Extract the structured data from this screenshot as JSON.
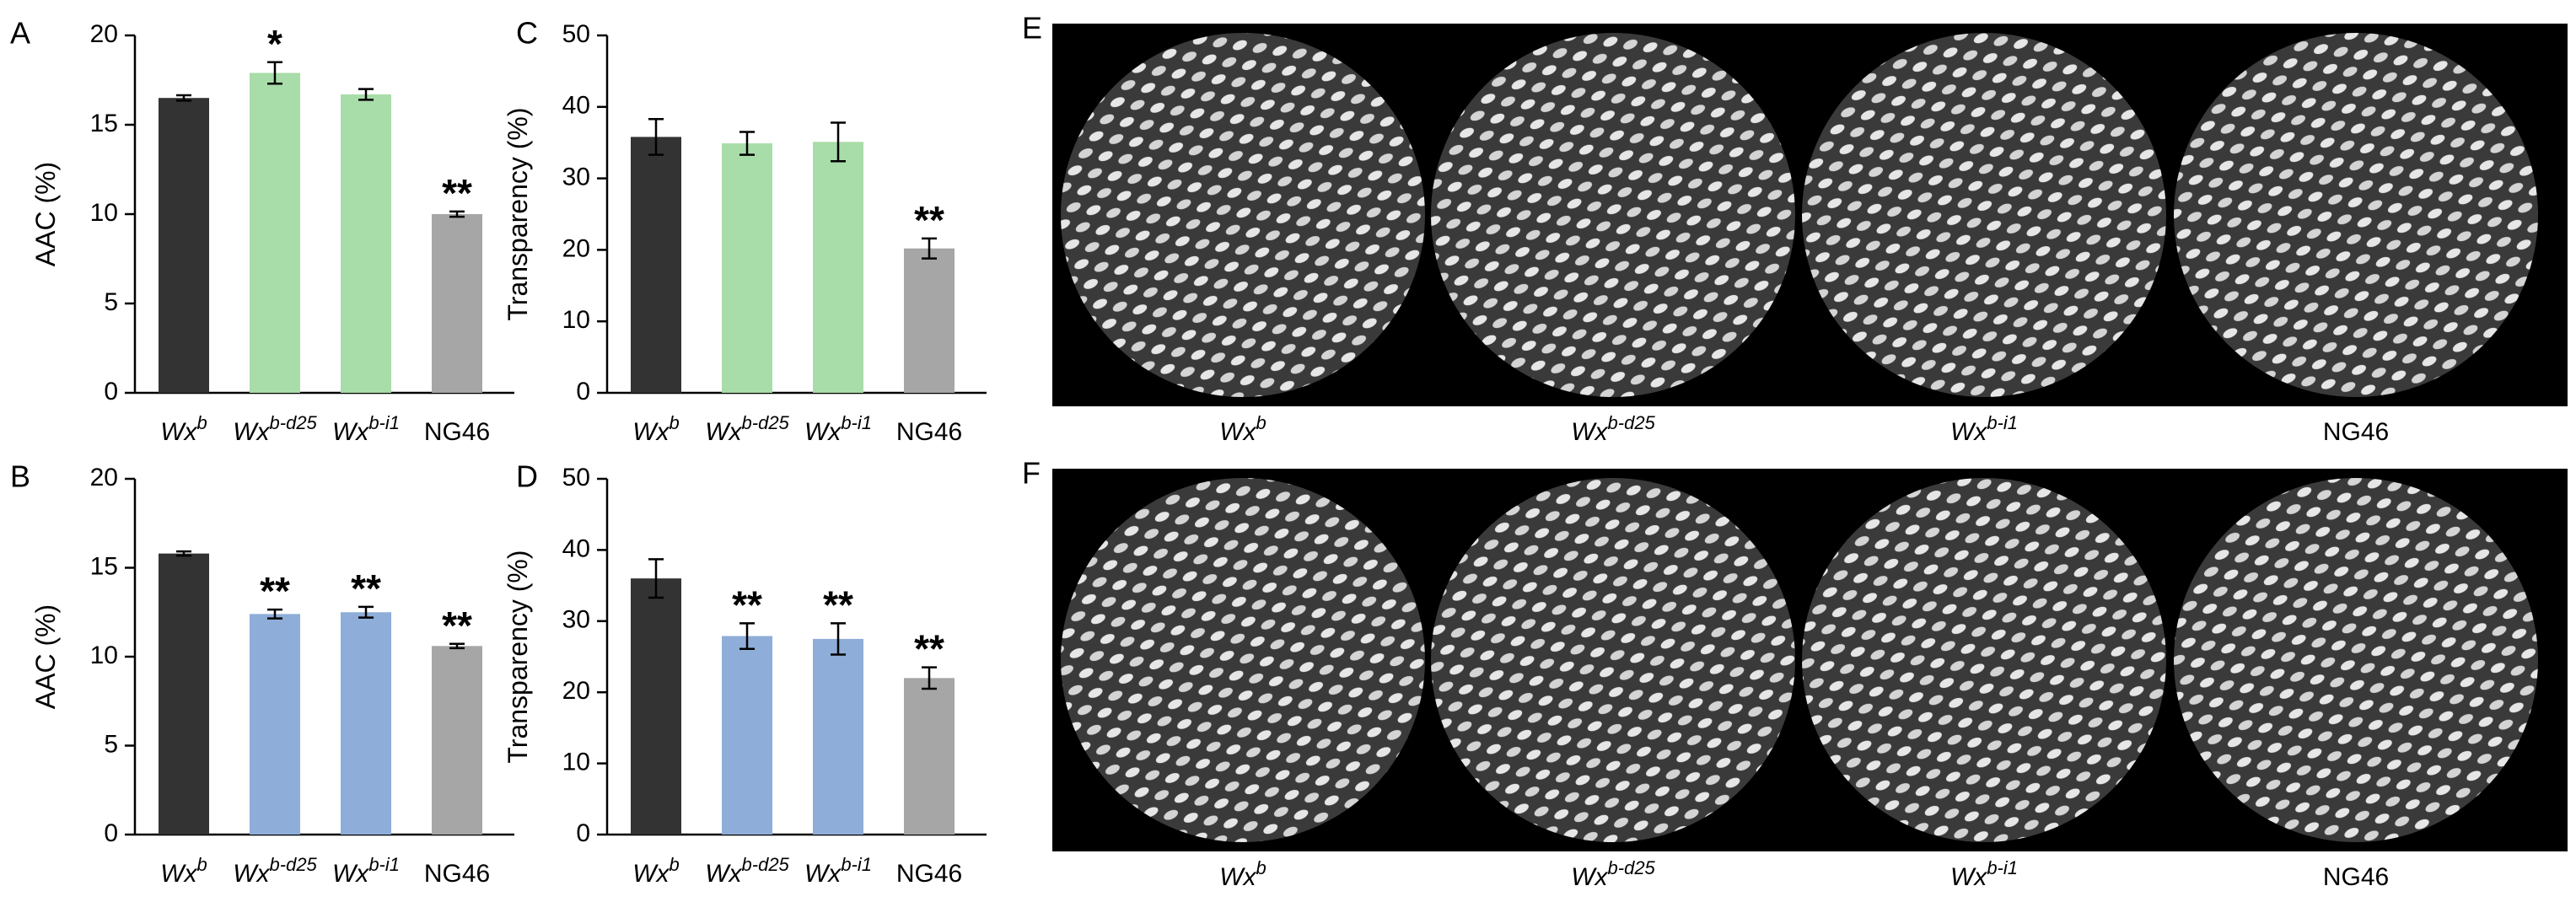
{
  "panel_letters": [
    "A",
    "B",
    "C",
    "D",
    "E",
    "F"
  ],
  "genotypes": [
    {
      "base": "Wx",
      "sup": "b"
    },
    {
      "base": "Wx",
      "sup": "b-d25"
    },
    {
      "base": "Wx",
      "sup": "b-i1"
    },
    {
      "base": "NG46",
      "sup": ""
    }
  ],
  "colors": {
    "wxb": "#333333",
    "knockout_green": "#a8dca8",
    "knockout_blue": "#8eadd8",
    "ng46": "#a6a6a6",
    "photo_background": "#000000",
    "grain": "#d9d9d9"
  },
  "chart_data": [
    {
      "panel": "A",
      "type": "bar",
      "ylabel": "AAC (%)",
      "ylim": [
        0,
        20
      ],
      "yticks": [
        "0",
        "5",
        "10",
        "15",
        "20"
      ],
      "categories": [
        "Wxb",
        "Wxb-d25",
        "Wxb-i1",
        "NG46"
      ],
      "values": [
        16.5,
        17.9,
        16.7,
        10.0
      ],
      "errors": [
        0.15,
        0.6,
        0.3,
        0.15
      ],
      "significance": [
        "",
        "*",
        "",
        "**"
      ],
      "bar_colors": [
        "#333333",
        "#a8dca8",
        "#a8dca8",
        "#a6a6a6"
      ]
    },
    {
      "panel": "B",
      "type": "bar",
      "ylabel": "AAC (%)",
      "ylim": [
        0,
        20
      ],
      "yticks": [
        "0",
        "5",
        "10",
        "15",
        "20"
      ],
      "categories": [
        "Wxb",
        "Wxb-d25",
        "Wxb-i1",
        "NG46"
      ],
      "values": [
        15.8,
        12.4,
        12.5,
        10.6
      ],
      "errors": [
        0.12,
        0.25,
        0.3,
        0.12
      ],
      "significance": [
        "",
        "**",
        "**",
        "**"
      ],
      "bar_colors": [
        "#333333",
        "#8eadd8",
        "#8eadd8",
        "#a6a6a6"
      ]
    },
    {
      "panel": "C",
      "type": "bar",
      "ylabel": "Transparency (%)",
      "ylim": [
        0,
        50
      ],
      "yticks": [
        "0",
        "10",
        "20",
        "30",
        "40",
        "50"
      ],
      "categories": [
        "Wxb",
        "Wxb-d25",
        "Wxb-i1",
        "NG46"
      ],
      "values": [
        35.8,
        34.9,
        35.1,
        20.2
      ],
      "errors": [
        2.5,
        1.6,
        2.7,
        1.4
      ],
      "significance": [
        "",
        "",
        "",
        "**"
      ],
      "bar_colors": [
        "#333333",
        "#a8dca8",
        "#a8dca8",
        "#a6a6a6"
      ]
    },
    {
      "panel": "D",
      "type": "bar",
      "ylabel": "Transparency (%)",
      "ylim": [
        0,
        50
      ],
      "yticks": [
        "0",
        "10",
        "20",
        "30",
        "40",
        "50"
      ],
      "categories": [
        "Wxb",
        "Wxb-d25",
        "Wxb-i1",
        "NG46"
      ],
      "values": [
        36.0,
        27.9,
        27.5,
        22.0
      ],
      "errors": [
        2.7,
        1.8,
        2.2,
        1.5
      ],
      "significance": [
        "",
        "**",
        "**",
        "**"
      ],
      "bar_colors": [
        "#333333",
        "#8eadd8",
        "#8eadd8",
        "#a6a6a6"
      ]
    }
  ]
}
